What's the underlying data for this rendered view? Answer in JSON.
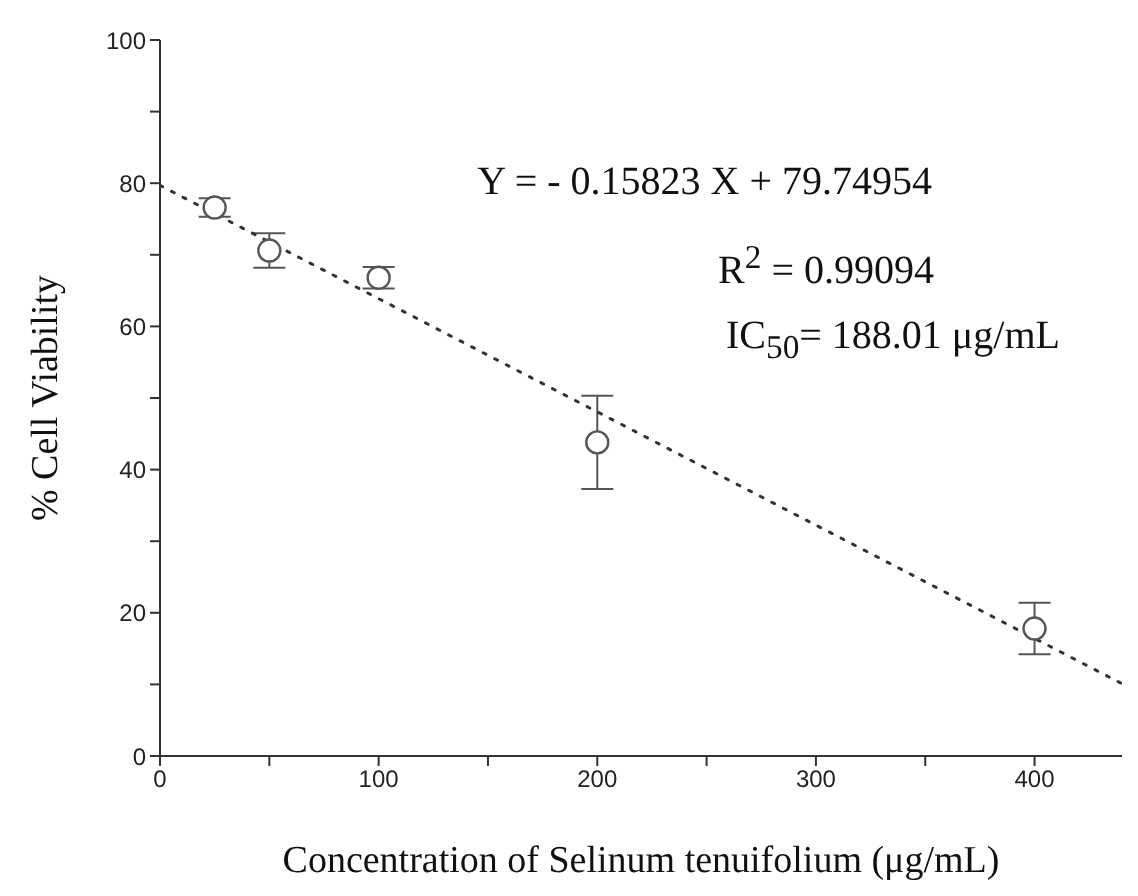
{
  "chart_data": {
    "type": "scatter",
    "xlabel": "Concentration of  Selinum tenuifolium  (μg/mL)",
    "ylabel": "% Cell Viability",
    "xlim": [
      0,
      440
    ],
    "ylim": [
      0,
      100
    ],
    "xticks": [
      0,
      {
        "value": 50,
        "label": null
      },
      100,
      {
        "value": 150,
        "label": null
      },
      200,
      {
        "value": 250,
        "label": null
      },
      300,
      {
        "value": 350,
        "label": null
      },
      400
    ],
    "yticks": [
      0,
      {
        "value": 10,
        "label": null
      },
      20,
      {
        "value": 30,
        "label": null
      },
      40,
      {
        "value": 50,
        "label": null
      },
      60,
      {
        "value": 70,
        "label": null
      },
      80,
      {
        "value": 90,
        "label": null
      },
      100
    ],
    "series": [
      {
        "color": "#555555",
        "marker": "circle",
        "x": [
          25,
          50,
          100,
          200,
          400
        ],
        "values": [
          76.6,
          70.6,
          66.8,
          43.8,
          17.8
        ],
        "errors": [
          1.3,
          2.4,
          1.5,
          6.5,
          3.6
        ]
      },
      {
        "type": "line",
        "color": "#333333",
        "marker": "none",
        "line_style": "dotted",
        "x": [
          0,
          440
        ],
        "values": [
          79.7,
          10.1
        ]
      }
    ],
    "annotations": [
      "Y = - 0.15823 X + 79.74954",
      "R$^{2}$ = 0.99094",
      "IC$_{50}$= 188.01 μg/mL"
    ],
    "grid": false,
    "legend": false
  }
}
